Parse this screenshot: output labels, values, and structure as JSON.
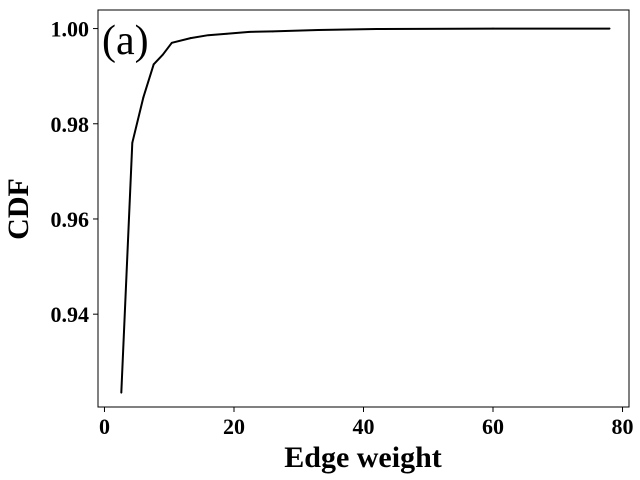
{
  "chart_data": {
    "type": "line",
    "title": "",
    "annotation": "(a)",
    "xlabel": "Edge weight",
    "ylabel": "CDF",
    "xlim": [
      -1,
      81
    ],
    "ylim": [
      0.9205,
      1.0039
    ],
    "xticks": [
      0,
      20,
      40,
      60,
      80
    ],
    "xtick_labels": [
      "0",
      "20",
      "40",
      "60",
      "80"
    ],
    "yticks": [
      0.94,
      0.96,
      0.98,
      1.0
    ],
    "ytick_labels": [
      "0.94",
      "0.96",
      "0.98",
      "1.00"
    ],
    "grid": false,
    "line_color": "#000000",
    "series": [
      {
        "x": [
          2.6,
          4.3,
          6.0,
          7.6,
          9.0,
          10.4,
          13.3,
          16.0,
          18.9,
          22.4,
          26.0,
          33.0,
          42.0,
          60.0,
          78.0
        ],
        "y": [
          0.9235,
          0.976,
          0.9855,
          0.9925,
          0.9945,
          0.997,
          0.998,
          0.9986,
          0.9989,
          0.9993,
          0.9994,
          0.9997,
          0.9999,
          1.0,
          1.0
        ]
      }
    ]
  }
}
